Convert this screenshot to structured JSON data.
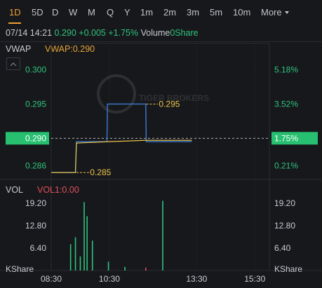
{
  "tabs": [
    {
      "label": "1D",
      "active": true
    },
    {
      "label": "5D"
    },
    {
      "label": "D"
    },
    {
      "label": "W"
    },
    {
      "label": "M"
    },
    {
      "label": "Q"
    },
    {
      "label": "Y"
    },
    {
      "label": "1m"
    },
    {
      "label": "2m"
    },
    {
      "label": "3m"
    },
    {
      "label": "5m"
    },
    {
      "label": "10m"
    },
    {
      "label": "More"
    }
  ],
  "quote": {
    "datetime": "07/14 14:21",
    "price": "0.290",
    "change": "+0.005",
    "change_pct": "+1.75%",
    "volume_label": "Volume",
    "volume_value": "0Share"
  },
  "vwap_panel": {
    "name": "VWAP",
    "value_label": "VWAP:0.290",
    "watermark": "TIGER BROKERS",
    "left_axis": [
      "0.300",
      "0.295",
      "0.290",
      "0.286"
    ],
    "right_axis": [
      "5.18%",
      "3.52%",
      "1.75%",
      "0.21%"
    ],
    "current_price": "0.290",
    "current_pct": "1.75%",
    "annotation_high": "0.295",
    "annotation_low": "0.285",
    "colors": {
      "price_line": "#3a7bd5",
      "vwap_line": "#e8c34a",
      "up": "#2fc37c",
      "highlight_bg": "#27c071"
    }
  },
  "vol_panel": {
    "name": "VOL",
    "value_label": "VOL1:0.00",
    "axis": [
      "19.20",
      "12.80",
      "6.40",
      "KShare"
    ],
    "time_labels": [
      "08:30",
      "10:30",
      "13:30",
      "15:30"
    ]
  },
  "chart_data": {
    "type": "line",
    "session": [
      "08:30",
      "16:00"
    ],
    "price": {
      "ylim": [
        0.284,
        0.302
      ],
      "series": [
        {
          "x": [
            "08:30",
            "09:20"
          ],
          "y": [
            0.285,
            0.285
          ]
        },
        {
          "x": [
            "09:20",
            "09:22"
          ],
          "y": [
            0.285,
            0.2895
          ]
        },
        {
          "x": [
            "09:22",
            "10:25"
          ],
          "y": [
            0.2895,
            0.2895
          ]
        },
        {
          "x": [
            "10:25",
            "10:26"
          ],
          "y": [
            0.2895,
            0.295
          ]
        },
        {
          "x": [
            "10:26",
            "11:45"
          ],
          "y": [
            0.295,
            0.295
          ]
        },
        {
          "x": [
            "11:45",
            "11:46"
          ],
          "y": [
            0.295,
            0.2895
          ]
        },
        {
          "x": [
            "11:46",
            "13:20"
          ],
          "y": [
            0.2895,
            0.2895
          ]
        }
      ]
    },
    "vwap": {
      "x": [
        "08:30",
        "09:20",
        "09:22",
        "10:25",
        "11:45",
        "13:20"
      ],
      "y": [
        0.285,
        0.285,
        0.2893,
        0.2895,
        0.2897,
        0.2897
      ]
    },
    "volume": {
      "ylim": [
        0,
        22
      ],
      "bars": [
        {
          "x": "09:10",
          "v": 7.5,
          "color": "#2fc37c"
        },
        {
          "x": "09:20",
          "v": 9.5,
          "color": "#2fc37c"
        },
        {
          "x": "09:30",
          "v": 4.0,
          "color": "#2fc37c"
        },
        {
          "x": "09:38",
          "v": 19.5,
          "color": "#2fc37c"
        },
        {
          "x": "09:44",
          "v": 15.5,
          "color": "#2fc37c"
        },
        {
          "x": "09:55",
          "v": 8.5,
          "color": "#2fc37c"
        },
        {
          "x": "10:28",
          "v": 2.5,
          "color": "#2fc37c"
        },
        {
          "x": "11:02",
          "v": 1.0,
          "color": "#2fc37c"
        },
        {
          "x": "11:45",
          "v": 0.8,
          "color": "#e0505a"
        },
        {
          "x": "12:20",
          "v": 19.9,
          "color": "#2fc37c"
        }
      ]
    }
  }
}
